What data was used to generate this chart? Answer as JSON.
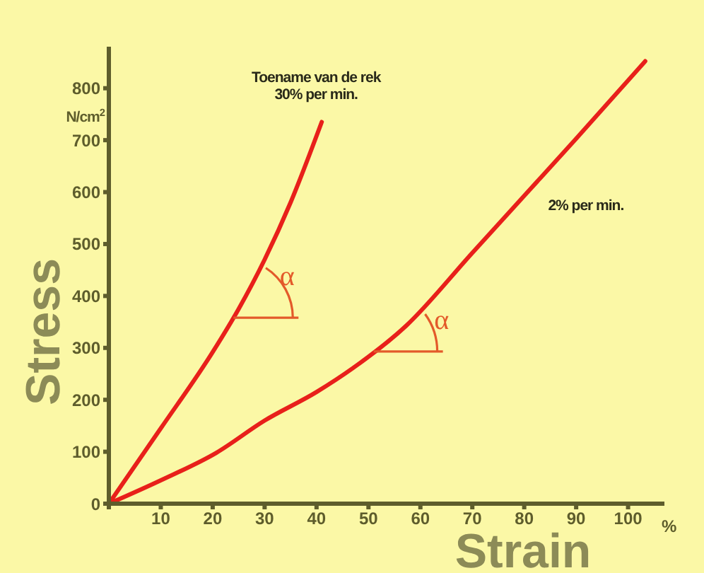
{
  "chart_data": {
    "type": "line",
    "xlabel": "Strain",
    "ylabel": "Stress",
    "annotations": [
      "N/cm$^{2}$",
      "%",
      {
        "text": "α",
        "x": 24,
        "y": 358
      },
      {
        "text": "α",
        "x": 51,
        "y": 293
      }
    ],
    "xlim": [
      0,
      107
    ],
    "ylim": [
      0,
      880
    ],
    "xticks": [
      {
        "value": 0,
        "label": null
      },
      10,
      20,
      30,
      40,
      50,
      60,
      70,
      80,
      90,
      100
    ],
    "yticks": [
      0,
      100,
      200,
      300,
      400,
      500,
      600,
      700,
      800
    ],
    "grid": false,
    "legend": false,
    "marker": "none",
    "line_style": "solid",
    "series": [
      {
        "name": "Toename van de rek 30% per min.",
        "color": "#e8201a",
        "x": [
          0,
          10,
          20,
          25,
          30,
          35,
          41
        ],
        "values": [
          0,
          145,
          292,
          375,
          470,
          580,
          735
        ]
      },
      {
        "name": "2% per min.",
        "color": "#e8201a",
        "x": [
          0,
          10,
          20.7,
          30,
          40,
          47,
          57.3,
          70,
          80,
          90,
          103.3
        ],
        "values": [
          0,
          45,
          98,
          160,
          215,
          261,
          343,
          483,
          593,
          703,
          852
        ]
      }
    ]
  }
}
